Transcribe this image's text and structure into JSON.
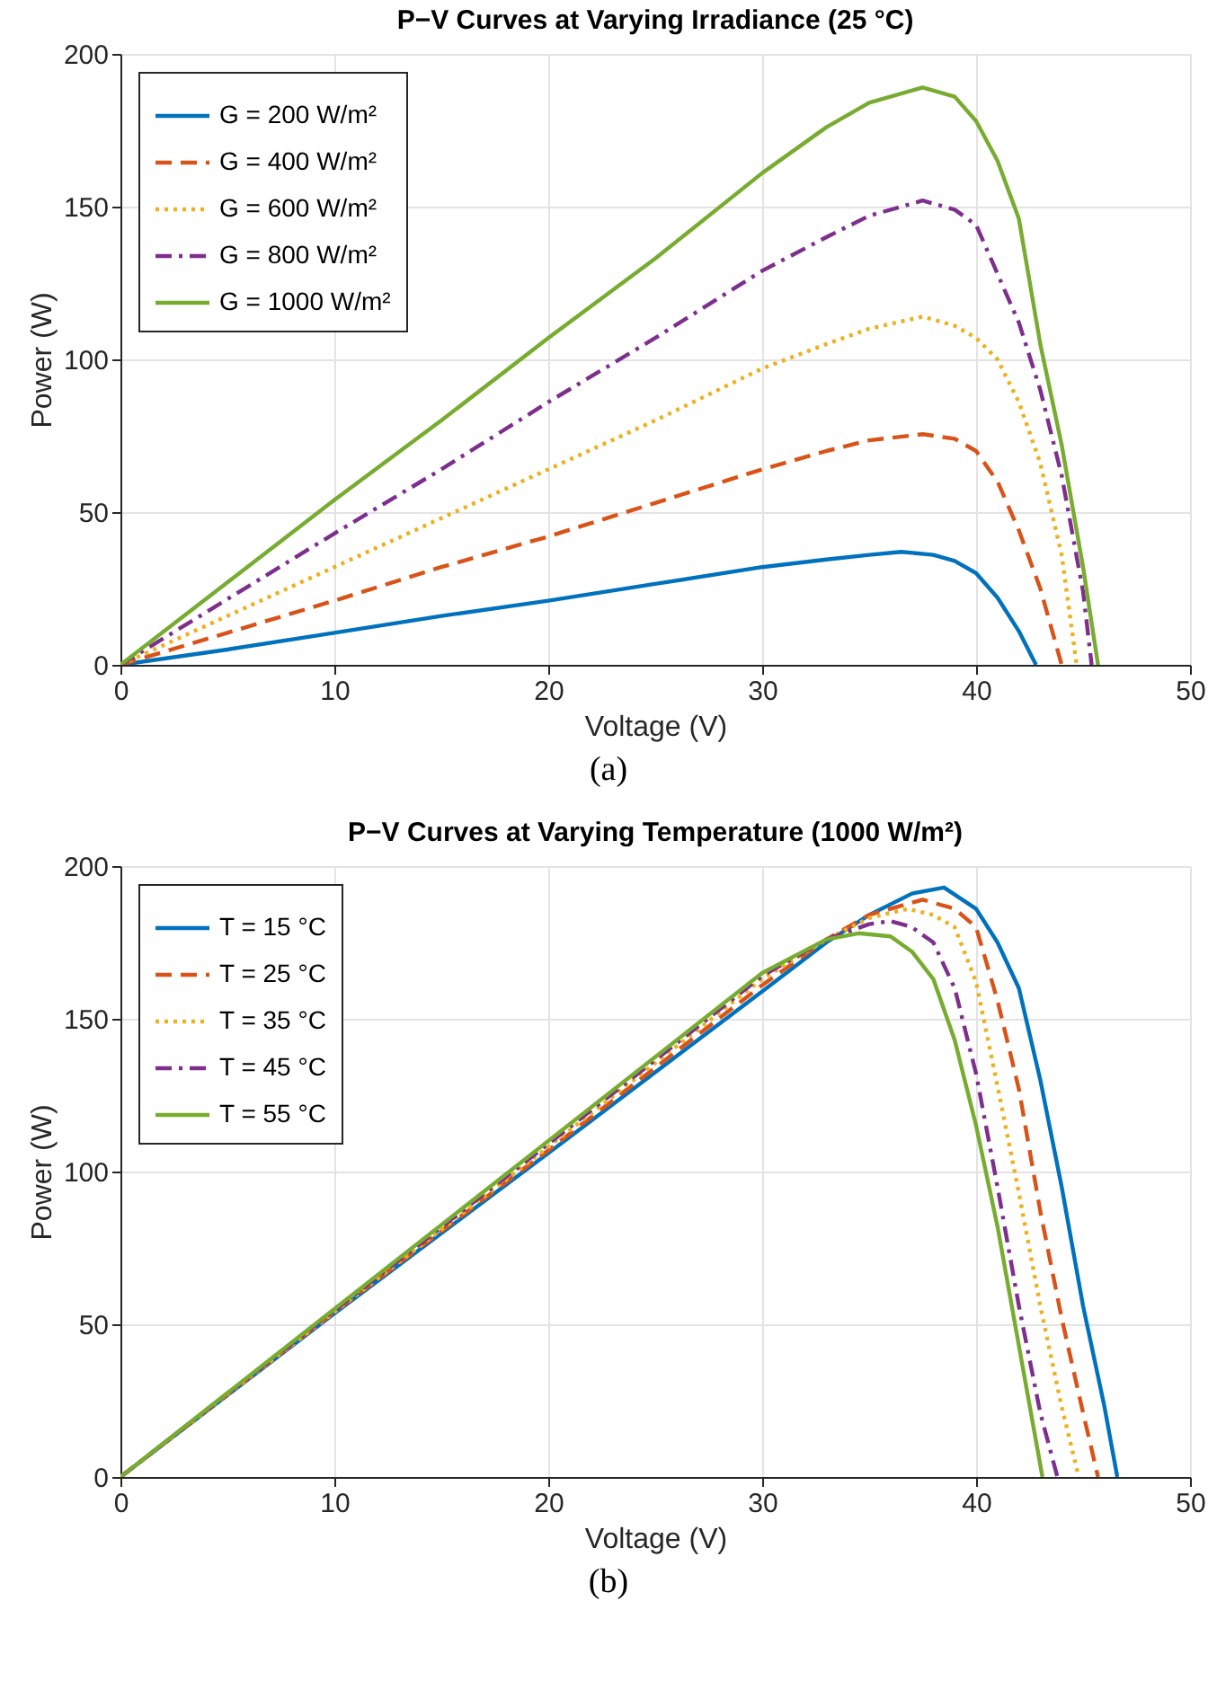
{
  "chart_data": [
    {
      "type": "line",
      "title": "P−V Curves at Varying Irradiance (25 °C)",
      "xlabel": "Voltage (V)",
      "ylabel": "Power (W)",
      "annotations": [
        "(a)"
      ],
      "xlim": [
        0,
        50
      ],
      "ylim": [
        0,
        200
      ],
      "xticks": [
        0,
        10,
        20,
        30,
        40,
        50
      ],
      "yticks": [
        0,
        50,
        100,
        150,
        200
      ],
      "grid": true,
      "legend": "top left",
      "series": [
        {
          "name": "G = 200 W/m²",
          "color": "#0072bd",
          "line_style": "solid",
          "x": [
            0,
            5,
            10,
            15,
            20,
            25,
            30,
            33,
            35,
            36.5,
            38,
            39,
            40,
            41,
            42,
            42.8
          ],
          "values": [
            0,
            5,
            10.5,
            16,
            21,
            26.5,
            32,
            34.5,
            36,
            37,
            36,
            34,
            30,
            22,
            11,
            0
          ]
        },
        {
          "name": "G = 400 W/m²",
          "color": "#d95319",
          "line_style": "dashed",
          "x": [
            0,
            5,
            10,
            15,
            20,
            25,
            30,
            33,
            35,
            37.5,
            39,
            40,
            41,
            42,
            43,
            44
          ],
          "values": [
            0,
            10.5,
            21,
            32,
            42,
            53,
            64,
            70,
            73.5,
            75.5,
            74,
            70,
            60,
            44,
            25,
            0
          ]
        },
        {
          "name": "G = 600 W/m²",
          "color": "#edb120",
          "line_style": "dotted",
          "x": [
            0,
            5,
            10,
            15,
            20,
            25,
            30,
            33,
            35,
            37.5,
            39,
            40,
            41,
            42,
            43,
            44,
            44.7
          ],
          "values": [
            0,
            16,
            32,
            48,
            64,
            80,
            97,
            105,
            110,
            114,
            111,
            107,
            100,
            86,
            66,
            36,
            0
          ]
        },
        {
          "name": "G = 800 W/m²",
          "color": "#7e2f8e",
          "line_style": "dashdot",
          "x": [
            0,
            5,
            10,
            15,
            20,
            25,
            30,
            33,
            35,
            37.5,
            39,
            40,
            41,
            42,
            43,
            44,
            45,
            45.4
          ],
          "values": [
            0,
            21.5,
            43,
            64,
            86,
            107,
            129,
            140,
            147,
            152,
            149,
            144,
            128,
            112,
            90,
            62,
            24,
            0
          ]
        },
        {
          "name": "G = 1000 W/m²",
          "color": "#77ac30",
          "line_style": "solid",
          "x": [
            0,
            5,
            10,
            15,
            20,
            25,
            30,
            33,
            35,
            37.5,
            39,
            40,
            41,
            42,
            43,
            44,
            45,
            45.7
          ],
          "values": [
            0,
            27,
            54,
            80,
            107,
            133,
            161,
            176,
            184,
            189,
            186,
            178,
            165,
            146,
            105,
            72,
            32,
            0
          ]
        }
      ]
    },
    {
      "type": "line",
      "title": "P−V Curves at Varying Temperature (1000 W/m²)",
      "xlabel": "Voltage (V)",
      "ylabel": "Power (W)",
      "annotations": [
        "(b)"
      ],
      "xlim": [
        0,
        50
      ],
      "ylim": [
        0,
        200
      ],
      "xticks": [
        0,
        10,
        20,
        30,
        40,
        50
      ],
      "yticks": [
        0,
        50,
        100,
        150,
        200
      ],
      "grid": true,
      "legend": "top left",
      "series": [
        {
          "name": "T = 15 °C",
          "color": "#0072bd",
          "line_style": "solid",
          "x": [
            0,
            10,
            20,
            30,
            33,
            35,
            37,
            38.5,
            40,
            41,
            42,
            43,
            44,
            45,
            46,
            46.6
          ],
          "values": [
            0,
            53.5,
            106,
            159,
            175,
            184,
            191,
            193,
            186,
            175,
            160,
            130,
            95,
            56,
            23,
            0
          ]
        },
        {
          "name": "T = 25 °C",
          "color": "#d95319",
          "line_style": "dashed",
          "x": [
            0,
            10,
            20,
            30,
            33,
            35,
            37.5,
            39,
            40,
            41,
            42,
            43,
            44,
            45,
            45.7
          ],
          "values": [
            0,
            54,
            107,
            161,
            176,
            184,
            189,
            186,
            180,
            156,
            127,
            87,
            52,
            21,
            0
          ]
        },
        {
          "name": "T = 35 °C",
          "color": "#edb120",
          "line_style": "dotted",
          "x": [
            0,
            10,
            20,
            30,
            33,
            35,
            36.8,
            38,
            39,
            40,
            41,
            42,
            43,
            44,
            44.8
          ],
          "values": [
            0,
            54,
            108,
            163,
            176,
            183,
            186,
            184,
            180,
            162,
            128,
            93,
            56,
            23,
            0
          ]
        },
        {
          "name": "T = 45 °C",
          "color": "#7e2f8e",
          "line_style": "dashdot",
          "x": [
            0,
            10,
            20,
            30,
            33,
            35,
            36,
            37,
            38,
            39,
            40,
            41,
            42,
            43,
            43.8
          ],
          "values": [
            0,
            54.5,
            109,
            164,
            176,
            181,
            182,
            180,
            175,
            160,
            132,
            95,
            56,
            21,
            0
          ]
        },
        {
          "name": "T = 55 °C",
          "color": "#77ac30",
          "line_style": "solid",
          "x": [
            0,
            10,
            20,
            30,
            33,
            34.5,
            36,
            37,
            38,
            39,
            40,
            41,
            42,
            43.1
          ],
          "values": [
            0,
            55,
            110,
            165,
            176,
            178,
            177,
            172,
            163,
            143,
            115,
            82,
            43,
            0
          ]
        }
      ]
    }
  ]
}
